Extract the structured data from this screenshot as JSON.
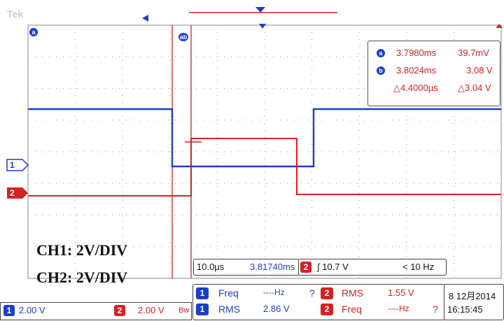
{
  "header": {
    "brand": "Tek"
  },
  "measurements": {
    "a_label": "a",
    "a_time": "3.7980ms",
    "a_value": "39.7mV",
    "b_label": "b",
    "b_time": "3.8024ms",
    "b_value": "3.08 V",
    "delta_time": "△4.4000µs",
    "delta_value": "△3.04 V"
  },
  "markers": {
    "ch1": "1",
    "ch2": "2",
    "cursor_a": "a",
    "cursor_b": "ab"
  },
  "annotations": {
    "ch1_scale": "CH1: 2V/DIV",
    "ch2_scale": "CH2: 2V/DIV"
  },
  "timebase": {
    "scale": "10.0µs",
    "position": "3.81740ms"
  },
  "trigger": {
    "channel": "2",
    "level": "∫ 10.7 V",
    "freq": "< 10 Hz"
  },
  "channels": {
    "ch1_badge": "1",
    "ch1_scale": "2.00 V",
    "ch2_badge": "2",
    "ch2_scale": "2.00 V",
    "bw": "Bw"
  },
  "measure_panel": {
    "ch1_freq_badge": "1",
    "ch1_freq_label": "Freq",
    "ch1_freq_value": "----Hz",
    "ch1_freq_q": "?",
    "ch1_rms_badge": "1",
    "ch1_rms_label": "RMS",
    "ch1_rms_value": "2.86 V",
    "ch2_rms_badge": "2",
    "ch2_rms_label": "RMS",
    "ch2_rms_value": "1.55 V",
    "ch2_freq_badge": "2",
    "ch2_freq_label": "Freq",
    "ch2_freq_value": "----Hz",
    "ch2_freq_q": "?"
  },
  "datetime": {
    "date": "8 12月2014",
    "time": "16:15:45"
  },
  "colors": {
    "ch1": "#1a3fc8",
    "ch2": "#d42222",
    "grid": "#9a9a9a"
  }
}
